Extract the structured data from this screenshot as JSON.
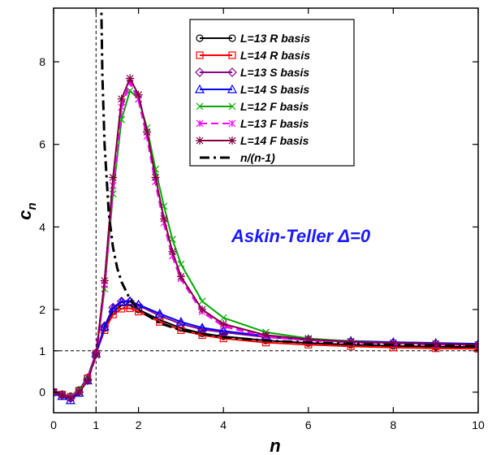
{
  "chart_data": {
    "type": "line",
    "title": "",
    "xlabel": "n",
    "ylabel": "c",
    "ylabel_sub": "n",
    "xlim": [
      0,
      10
    ],
    "ylim": [
      -0.5,
      9.3
    ],
    "xticks": [
      0,
      1,
      2,
      4,
      6,
      8,
      10
    ],
    "yticks": [
      0,
      1,
      2,
      4,
      6,
      8
    ],
    "reference_lines": {
      "x": 1,
      "y": 1,
      "style": "dashed"
    },
    "annotation": "Askin-Teller Δ=0",
    "legend_position": "top-center",
    "series": [
      {
        "name": "L=13 R basis",
        "color": "#000000",
        "marker": "circle",
        "line": "solid",
        "x": [
          0,
          0.2,
          0.4,
          0.6,
          0.8,
          1.0,
          1.2,
          1.4,
          1.6,
          1.8,
          2.0,
          2.5,
          3.0,
          3.5,
          4.0,
          5.0,
          6.0,
          7.0,
          8.0,
          9.0,
          10.0
        ],
        "y": [
          0,
          -0.05,
          -0.1,
          0.05,
          0.35,
          0.95,
          1.55,
          1.95,
          2.1,
          2.1,
          2.0,
          1.75,
          1.55,
          1.42,
          1.35,
          1.25,
          1.19,
          1.15,
          1.12,
          1.1,
          1.09
        ]
      },
      {
        "name": "L=14 R basis",
        "color": "#ff0000",
        "marker": "square",
        "line": "solid",
        "x": [
          0,
          0.2,
          0.4,
          0.6,
          0.8,
          1.0,
          1.2,
          1.4,
          1.6,
          1.8,
          2.0,
          2.5,
          3.0,
          3.5,
          4.0,
          5.0,
          6.0,
          7.0,
          8.0,
          9.0,
          10.0
        ],
        "y": [
          0,
          -0.06,
          -0.12,
          0.03,
          0.33,
          0.93,
          1.5,
          1.88,
          2.02,
          2.03,
          1.95,
          1.7,
          1.5,
          1.38,
          1.3,
          1.2,
          1.15,
          1.11,
          1.08,
          1.06,
          1.05
        ]
      },
      {
        "name": "L=13 S basis",
        "color": "#8b008b",
        "marker": "diamond",
        "line": "solid",
        "x": [
          0,
          0.2,
          0.4,
          0.6,
          0.8,
          1.0,
          1.2,
          1.4,
          1.6,
          1.8,
          2.0,
          2.5,
          3.0,
          3.5,
          4.0,
          5.0,
          6.0,
          7.0,
          8.0,
          9.0,
          10.0
        ],
        "y": [
          0,
          -0.08,
          -0.15,
          0.0,
          0.3,
          0.95,
          1.6,
          2.05,
          2.2,
          2.2,
          2.1,
          1.85,
          1.65,
          1.52,
          1.45,
          1.33,
          1.26,
          1.22,
          1.19,
          1.17,
          1.15
        ]
      },
      {
        "name": "L=14 S basis",
        "color": "#0000ff",
        "marker": "triangle",
        "line": "solid",
        "x": [
          0,
          0.2,
          0.4,
          0.6,
          0.8,
          1.0,
          1.2,
          1.4,
          1.6,
          1.8,
          2.0,
          2.5,
          3.0,
          3.5,
          4.0,
          5.0,
          6.0,
          7.0,
          8.0,
          9.0,
          10.0
        ],
        "y": [
          0,
          -0.1,
          -0.2,
          -0.02,
          0.28,
          0.93,
          1.58,
          2.02,
          2.18,
          2.2,
          2.12,
          1.9,
          1.7,
          1.56,
          1.48,
          1.36,
          1.28,
          1.24,
          1.21,
          1.19,
          1.17
        ]
      },
      {
        "name": "L=12 F basis",
        "color": "#00aa00",
        "marker": "x",
        "line": "solid",
        "x": [
          0,
          0.2,
          0.4,
          0.6,
          0.8,
          1.0,
          1.2,
          1.4,
          1.6,
          1.8,
          2.0,
          2.2,
          2.4,
          2.6,
          2.8,
          3.0,
          3.5,
          4.0,
          5.0,
          6.0,
          7.0,
          8.0,
          9.0,
          10.0
        ],
        "y": [
          0,
          -0.05,
          -0.1,
          0.05,
          0.3,
          0.9,
          2.5,
          4.8,
          6.6,
          7.3,
          7.1,
          6.4,
          5.4,
          4.5,
          3.7,
          3.1,
          2.2,
          1.8,
          1.45,
          1.3,
          1.23,
          1.19,
          1.17,
          1.15
        ]
      },
      {
        "name": "L=13 F basis",
        "color": "#ff00ff",
        "marker": "star",
        "line": "dashed",
        "x": [
          0,
          0.2,
          0.4,
          0.6,
          0.8,
          1.0,
          1.2,
          1.4,
          1.6,
          1.8,
          2.0,
          2.2,
          2.4,
          2.6,
          2.8,
          3.0,
          3.5,
          4.0,
          5.0,
          6.0,
          7.0,
          8.0,
          9.0,
          10.0
        ],
        "y": [
          0,
          -0.06,
          -0.12,
          0.02,
          0.28,
          0.9,
          2.6,
          5.0,
          6.9,
          7.5,
          7.1,
          6.2,
          5.1,
          4.1,
          3.3,
          2.75,
          1.95,
          1.6,
          1.35,
          1.26,
          1.21,
          1.18,
          1.16,
          1.14
        ]
      },
      {
        "name": "L=14 F basis",
        "color": "#800040",
        "marker": "asterisk",
        "line": "solid",
        "x": [
          0,
          0.2,
          0.4,
          0.6,
          0.8,
          1.0,
          1.2,
          1.4,
          1.6,
          1.8,
          2.0,
          2.2,
          2.4,
          2.6,
          2.8,
          3.0,
          3.5,
          4.0,
          5.0,
          6.0,
          7.0,
          8.0,
          9.0,
          10.0
        ],
        "y": [
          0,
          -0.07,
          -0.14,
          0.0,
          0.27,
          0.9,
          2.7,
          5.2,
          7.1,
          7.6,
          7.2,
          6.3,
          5.2,
          4.2,
          3.4,
          2.8,
          2.0,
          1.65,
          1.38,
          1.28,
          1.22,
          1.19,
          1.17,
          1.15
        ]
      },
      {
        "name": "n/(n-1)",
        "color": "#000000",
        "marker": "none",
        "line": "dashdot",
        "function": "n/(n-1)",
        "x": [
          1.1,
          1.15,
          1.2,
          1.3,
          1.4,
          1.5,
          1.6,
          1.8,
          2.0,
          2.5,
          3.0,
          4.0,
          5.0,
          6.0,
          7.0,
          8.0,
          9.0,
          10.0
        ],
        "y": [
          11.0,
          7.67,
          6.0,
          4.33,
          3.5,
          3.0,
          2.67,
          2.25,
          2.0,
          1.67,
          1.5,
          1.33,
          1.25,
          1.2,
          1.17,
          1.14,
          1.13,
          1.11
        ]
      }
    ]
  }
}
